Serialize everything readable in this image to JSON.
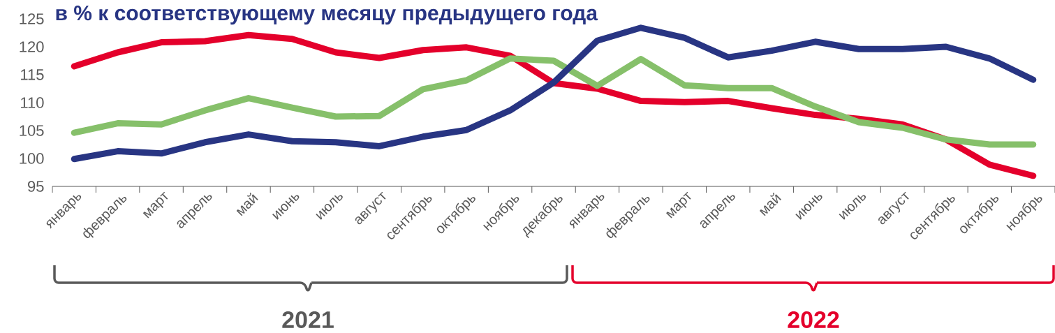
{
  "chart_data": {
    "type": "line",
    "title": "в % к соответствующему месяцу предыдущего года",
    "categories": [
      "январь",
      "февраль",
      "март",
      "апрель",
      "май",
      "июнь",
      "июль",
      "август",
      "сентябрь",
      "октябрь",
      "ноябрь",
      "декабрь",
      "январь",
      "февраль",
      "март",
      "апрель",
      "май",
      "июнь",
      "июль",
      "август",
      "сентябрь",
      "октябрь",
      "ноябрь"
    ],
    "series": [
      {
        "color": "#e4002b",
        "values": [
          116.5,
          119,
          120.8,
          121,
          122.1,
          121.4,
          119,
          118,
          119.4,
          119.9,
          118.4,
          113.5,
          112.5,
          110.3,
          110.1,
          110.3,
          109,
          107.8,
          107.1,
          106.1,
          103.4,
          98.9,
          96.9
        ]
      },
      {
        "color": "#86c06a",
        "values": [
          104.6,
          106.3,
          106.1,
          108.6,
          110.8,
          109.1,
          107.5,
          107.6,
          112.4,
          114,
          117.9,
          117.5,
          113,
          117.8,
          113.1,
          112.6,
          112.6,
          109.3,
          106.5,
          105.5,
          103.4,
          102.5,
          102.5
        ]
      },
      {
        "color": "#283583",
        "values": [
          99.9,
          101.3,
          100.9,
          102.9,
          104.3,
          103.1,
          102.9,
          102.2,
          103.9,
          105.1,
          108.6,
          113.6,
          121.1,
          123.4,
          121.6,
          118.1,
          119.3,
          120.9,
          119.6,
          119.6,
          120,
          117.9,
          114.1
        ]
      }
    ],
    "ylim": [
      95,
      125
    ],
    "yticks": [
      95,
      100,
      105,
      110,
      115,
      120,
      125
    ],
    "annotations": [
      "2021",
      "2022"
    ]
  }
}
